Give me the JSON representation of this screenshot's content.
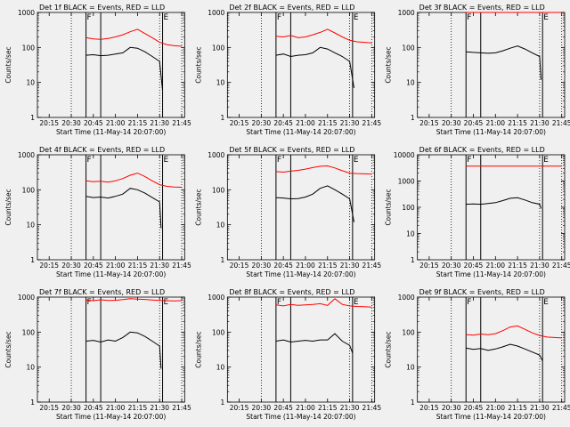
{
  "chart_data": [
    {
      "type": "line",
      "title": "Det 1f BLACK = Events, RED = LLD",
      "xlabel": "Start Time (11-May-14 20:07:00)",
      "ylabel": "Counts/sec",
      "xlim": [
        "20:07",
        "21:47"
      ],
      "ylim": [
        1,
        1000
      ],
      "yscale": "log",
      "x_ticks": [
        "20:15",
        "20:30",
        "20:45",
        "21:00",
        "21:15",
        "21:30",
        "21:45"
      ],
      "y_ticks": [
        "1",
        "10",
        "100",
        "1000"
      ],
      "markers": [
        {
          "label": "F",
          "time": "20:40"
        },
        {
          "label": "",
          "time": "20:50"
        },
        {
          "label": "E",
          "time": "21:32"
        }
      ],
      "dotted_lines": [
        "20:30",
        "21:30",
        "21:45"
      ],
      "series": [
        {
          "color": "#000000",
          "x": [
            "20:40",
            "20:45",
            "20:50",
            "20:55",
            "21:00",
            "21:05",
            "21:10",
            "21:15",
            "21:20",
            "21:25",
            "21:30",
            "21:32"
          ],
          "values": [
            60,
            62,
            58,
            60,
            65,
            70,
            100,
            95,
            75,
            55,
            40,
            6
          ]
        },
        {
          "color": "#ff0000",
          "x": [
            "20:40",
            "20:45",
            "20:50",
            "20:55",
            "21:00",
            "21:05",
            "21:10",
            "21:15",
            "21:20",
            "21:25",
            "21:30",
            "21:35",
            "21:40",
            "21:45"
          ],
          "values": [
            190,
            175,
            170,
            180,
            200,
            230,
            280,
            330,
            250,
            190,
            140,
            120,
            112,
            108
          ]
        }
      ]
    },
    {
      "type": "line",
      "title": "Det 2f BLACK = Events, RED = LLD",
      "xlabel": "Start Time (11-May-14 20:07:00)",
      "ylabel": "Counts/sec",
      "xlim": [
        "20:07",
        "21:47"
      ],
      "ylim": [
        1,
        1000
      ],
      "yscale": "log",
      "x_ticks": [
        "20:15",
        "20:30",
        "20:45",
        "21:00",
        "21:15",
        "21:30",
        "21:45"
      ],
      "y_ticks": [
        "1",
        "10",
        "100",
        "1000"
      ],
      "markers": [
        {
          "label": "F",
          "time": "20:40"
        },
        {
          "label": "",
          "time": "20:50"
        },
        {
          "label": "E",
          "time": "21:32"
        }
      ],
      "dotted_lines": [
        "20:30",
        "21:30",
        "21:45"
      ],
      "series": [
        {
          "color": "#000000",
          "x": [
            "20:40",
            "20:45",
            "20:50",
            "20:55",
            "21:00",
            "21:05",
            "21:10",
            "21:15",
            "21:20",
            "21:25",
            "21:30",
            "21:33"
          ],
          "values": [
            60,
            65,
            55,
            60,
            62,
            70,
            100,
            90,
            70,
            55,
            40,
            7
          ]
        },
        {
          "color": "#ff0000",
          "x": [
            "20:40",
            "20:45",
            "20:50",
            "20:55",
            "21:00",
            "21:05",
            "21:10",
            "21:15",
            "21:20",
            "21:25",
            "21:30",
            "21:35",
            "21:40",
            "21:45"
          ],
          "values": [
            210,
            200,
            220,
            190,
            200,
            230,
            270,
            330,
            260,
            200,
            160,
            145,
            140,
            135
          ]
        }
      ]
    },
    {
      "type": "line",
      "title": "Det 3f BLACK = Events, RED = LLD",
      "xlabel": "Start Time (11-May-14 20:07:00)",
      "ylabel": "Counts/sec",
      "xlim": [
        "20:07",
        "21:47"
      ],
      "ylim": [
        1,
        1000
      ],
      "yscale": "log",
      "x_ticks": [
        "20:15",
        "20:30",
        "20:45",
        "21:00",
        "21:15",
        "21:30",
        "21:45"
      ],
      "y_ticks": [
        "1",
        "10",
        "100",
        "1000"
      ],
      "markers": [
        {
          "label": "F",
          "time": "20:40"
        },
        {
          "label": "",
          "time": "20:50"
        },
        {
          "label": "E",
          "time": "21:32"
        }
      ],
      "dotted_lines": [
        "20:30",
        "21:30",
        "21:45"
      ],
      "series": [
        {
          "color": "#000000",
          "x": [
            "20:40",
            "20:45",
            "20:50",
            "20:55",
            "21:00",
            "21:05",
            "21:10",
            "21:15",
            "21:20",
            "21:25",
            "21:30",
            "21:31"
          ],
          "values": [
            75,
            72,
            70,
            68,
            70,
            80,
            95,
            110,
            90,
            70,
            55,
            12
          ]
        },
        {
          "color": "#ff0000",
          "x": [
            "20:40",
            "21:45"
          ],
          "values": [
            1000,
            1000
          ]
        }
      ]
    },
    {
      "type": "line",
      "title": "Det 4f BLACK = Events, RED = LLD",
      "xlabel": "Start Time (11-May-14 20:07:00)",
      "ylabel": "Counts/sec",
      "xlim": [
        "20:07",
        "21:47"
      ],
      "ylim": [
        1,
        1000
      ],
      "yscale": "log",
      "x_ticks": [
        "20:15",
        "20:30",
        "20:45",
        "21:00",
        "21:15",
        "21:30",
        "21:45"
      ],
      "y_ticks": [
        "1",
        "10",
        "100",
        "1000"
      ],
      "markers": [
        {
          "label": "F",
          "time": "20:40"
        },
        {
          "label": "",
          "time": "20:50"
        },
        {
          "label": "E",
          "time": "21:32"
        }
      ],
      "dotted_lines": [
        "20:30",
        "21:30",
        "21:45"
      ],
      "series": [
        {
          "color": "#000000",
          "x": [
            "20:40",
            "20:45",
            "20:50",
            "20:55",
            "21:00",
            "21:05",
            "21:10",
            "21:15",
            "21:20",
            "21:25",
            "21:30",
            "21:31"
          ],
          "values": [
            65,
            60,
            62,
            58,
            65,
            75,
            110,
            100,
            80,
            60,
            45,
            8
          ]
        },
        {
          "color": "#ff0000",
          "x": [
            "20:40",
            "20:45",
            "20:50",
            "20:55",
            "21:00",
            "21:05",
            "21:10",
            "21:15",
            "21:20",
            "21:25",
            "21:30",
            "21:35",
            "21:40",
            "21:45"
          ],
          "values": [
            180,
            170,
            175,
            165,
            180,
            210,
            260,
            300,
            240,
            180,
            140,
            125,
            120,
            118
          ]
        }
      ]
    },
    {
      "type": "line",
      "title": "Det 5f BLACK = Events, RED = LLD",
      "xlabel": "Start Time (11-May-14 20:07:00)",
      "ylabel": "Counts/sec",
      "xlim": [
        "20:07",
        "21:47"
      ],
      "ylim": [
        1,
        1000
      ],
      "yscale": "log",
      "x_ticks": [
        "20:15",
        "20:30",
        "20:45",
        "21:00",
        "21:15",
        "21:30",
        "21:45"
      ],
      "y_ticks": [
        "1",
        "10",
        "100",
        "1000"
      ],
      "markers": [
        {
          "label": "F",
          "time": "20:40"
        },
        {
          "label": "",
          "time": "20:50"
        },
        {
          "label": "E",
          "time": "21:32"
        }
      ],
      "dotted_lines": [
        "20:30",
        "21:30",
        "21:45"
      ],
      "series": [
        {
          "color": "#000000",
          "x": [
            "20:40",
            "20:45",
            "20:50",
            "20:55",
            "21:00",
            "21:05",
            "21:10",
            "21:15",
            "21:20",
            "21:25",
            "21:30",
            "21:33"
          ],
          "values": [
            60,
            58,
            55,
            56,
            62,
            75,
            110,
            130,
            100,
            75,
            55,
            12
          ]
        },
        {
          "color": "#ff0000",
          "x": [
            "20:40",
            "20:45",
            "20:50",
            "20:55",
            "21:00",
            "21:05",
            "21:10",
            "21:15",
            "21:20",
            "21:25",
            "21:30",
            "21:35",
            "21:40",
            "21:45"
          ],
          "values": [
            330,
            320,
            340,
            360,
            390,
            430,
            470,
            480,
            420,
            350,
            300,
            290,
            285,
            280
          ]
        }
      ]
    },
    {
      "type": "line",
      "title": "Det 6f BLACK = Events, RED = LLD",
      "xlabel": "Start Time (11-May-14 20:07:00)",
      "ylabel": "Counts/sec",
      "xlim": [
        "20:07",
        "21:47"
      ],
      "ylim": [
        1,
        10000
      ],
      "yscale": "log",
      "x_ticks": [
        "20:15",
        "20:30",
        "20:45",
        "21:00",
        "21:15",
        "21:30",
        "21:45"
      ],
      "y_ticks": [
        "1",
        "10",
        "100",
        "1000",
        "10000"
      ],
      "markers": [
        {
          "label": "F",
          "time": "20:40"
        },
        {
          "label": "",
          "time": "20:50"
        },
        {
          "label": "E",
          "time": "21:32"
        }
      ],
      "dotted_lines": [
        "20:30",
        "21:30",
        "21:45"
      ],
      "series": [
        {
          "color": "#000000",
          "x": [
            "20:40",
            "20:45",
            "20:50",
            "20:55",
            "21:00",
            "21:05",
            "21:10",
            "21:15",
            "21:20",
            "21:25",
            "21:30",
            "21:31"
          ],
          "values": [
            130,
            135,
            130,
            140,
            150,
            180,
            220,
            230,
            190,
            150,
            130,
            90
          ]
        },
        {
          "color": "#ff0000",
          "x": [
            "20:40",
            "21:45"
          ],
          "values": [
            3700,
            3700
          ]
        }
      ]
    },
    {
      "type": "line",
      "title": "Det 7f BLACK = Events, RED = LLD",
      "xlabel": "Start Time (11-May-14 20:07:00)",
      "ylabel": "Counts/sec",
      "xlim": [
        "20:07",
        "21:47"
      ],
      "ylim": [
        1,
        1000
      ],
      "yscale": "log",
      "x_ticks": [
        "20:15",
        "20:30",
        "20:45",
        "21:00",
        "21:15",
        "21:30",
        "21:45"
      ],
      "y_ticks": [
        "1",
        "10",
        "100",
        "1000"
      ],
      "markers": [
        {
          "label": "F",
          "time": "20:40"
        },
        {
          "label": "",
          "time": "20:50"
        },
        {
          "label": "E",
          "time": "21:32"
        }
      ],
      "dotted_lines": [
        "20:30",
        "21:30",
        "21:45"
      ],
      "series": [
        {
          "color": "#000000",
          "x": [
            "20:40",
            "20:45",
            "20:50",
            "20:55",
            "21:00",
            "21:05",
            "21:10",
            "21:15",
            "21:20",
            "21:25",
            "21:30",
            "21:31"
          ],
          "values": [
            55,
            58,
            52,
            60,
            55,
            70,
            100,
            95,
            75,
            55,
            40,
            9
          ]
        },
        {
          "color": "#ff0000",
          "x": [
            "20:40",
            "20:45",
            "20:50",
            "20:55",
            "21:00",
            "21:05",
            "21:10",
            "21:15",
            "21:20",
            "21:25",
            "21:30",
            "21:35",
            "21:40",
            "21:45"
          ],
          "values": [
            820,
            790,
            840,
            800,
            810,
            850,
            900,
            880,
            860,
            830,
            800,
            790,
            780,
            790
          ]
        }
      ]
    },
    {
      "type": "line",
      "title": "Det 8f BLACK = Events, RED = LLD",
      "xlabel": "Start Time (11-May-14 20:07:00)",
      "ylabel": "Counts/sec",
      "xlim": [
        "20:07",
        "21:47"
      ],
      "ylim": [
        1,
        1000
      ],
      "yscale": "log",
      "x_ticks": [
        "20:15",
        "20:30",
        "20:45",
        "21:00",
        "21:15",
        "21:30",
        "21:45"
      ],
      "y_ticks": [
        "1",
        "10",
        "100",
        "1000"
      ],
      "markers": [
        {
          "label": "F",
          "time": "20:40"
        },
        {
          "label": "",
          "time": "20:50"
        },
        {
          "label": "E",
          "time": "21:32"
        }
      ],
      "dotted_lines": [
        "20:30",
        "21:30",
        "21:45"
      ],
      "series": [
        {
          "color": "#000000",
          "x": [
            "20:40",
            "20:45",
            "20:50",
            "20:55",
            "21:00",
            "21:05",
            "21:10",
            "21:15",
            "21:20",
            "21:25",
            "21:30",
            "21:32"
          ],
          "values": [
            55,
            60,
            52,
            55,
            58,
            55,
            60,
            60,
            90,
            55,
            42,
            25
          ]
        },
        {
          "color": "#ff0000",
          "x": [
            "20:40",
            "20:45",
            "20:50",
            "20:55",
            "21:00",
            "21:05",
            "21:10",
            "21:15",
            "21:20",
            "21:25",
            "21:30",
            "21:35",
            "21:40",
            "21:45"
          ],
          "values": [
            600,
            560,
            620,
            580,
            600,
            620,
            650,
            580,
            900,
            620,
            560,
            540,
            530,
            520
          ]
        }
      ]
    },
    {
      "type": "line",
      "title": "Det 9f BLACK = Events, RED = LLD",
      "xlabel": "Start Time (11-May-14 20:07:00)",
      "ylabel": "Counts/sec",
      "xlim": [
        "20:07",
        "21:47"
      ],
      "ylim": [
        1,
        1000
      ],
      "yscale": "log",
      "x_ticks": [
        "20:15",
        "20:30",
        "20:45",
        "21:00",
        "21:15",
        "21:30",
        "21:45"
      ],
      "y_ticks": [
        "1",
        "10",
        "100",
        "1000"
      ],
      "markers": [
        {
          "label": "F",
          "time": "20:40"
        },
        {
          "label": "",
          "time": "20:50"
        },
        {
          "label": "E",
          "time": "21:32"
        }
      ],
      "dotted_lines": [
        "20:30",
        "21:30",
        "21:45"
      ],
      "series": [
        {
          "color": "#000000",
          "x": [
            "20:40",
            "20:45",
            "20:50",
            "20:55",
            "21:00",
            "21:05",
            "21:10",
            "21:15",
            "21:20",
            "21:25",
            "21:30",
            "21:32"
          ],
          "values": [
            35,
            32,
            34,
            30,
            33,
            38,
            45,
            40,
            33,
            27,
            22,
            15
          ]
        },
        {
          "color": "#ff0000",
          "x": [
            "20:40",
            "20:45",
            "20:50",
            "20:55",
            "21:00",
            "21:05",
            "21:10",
            "21:15",
            "21:20",
            "21:25",
            "21:30",
            "21:35",
            "21:40",
            "21:45"
          ],
          "values": [
            85,
            82,
            88,
            84,
            90,
            110,
            140,
            150,
            120,
            95,
            80,
            72,
            70,
            68
          ]
        }
      ]
    }
  ]
}
